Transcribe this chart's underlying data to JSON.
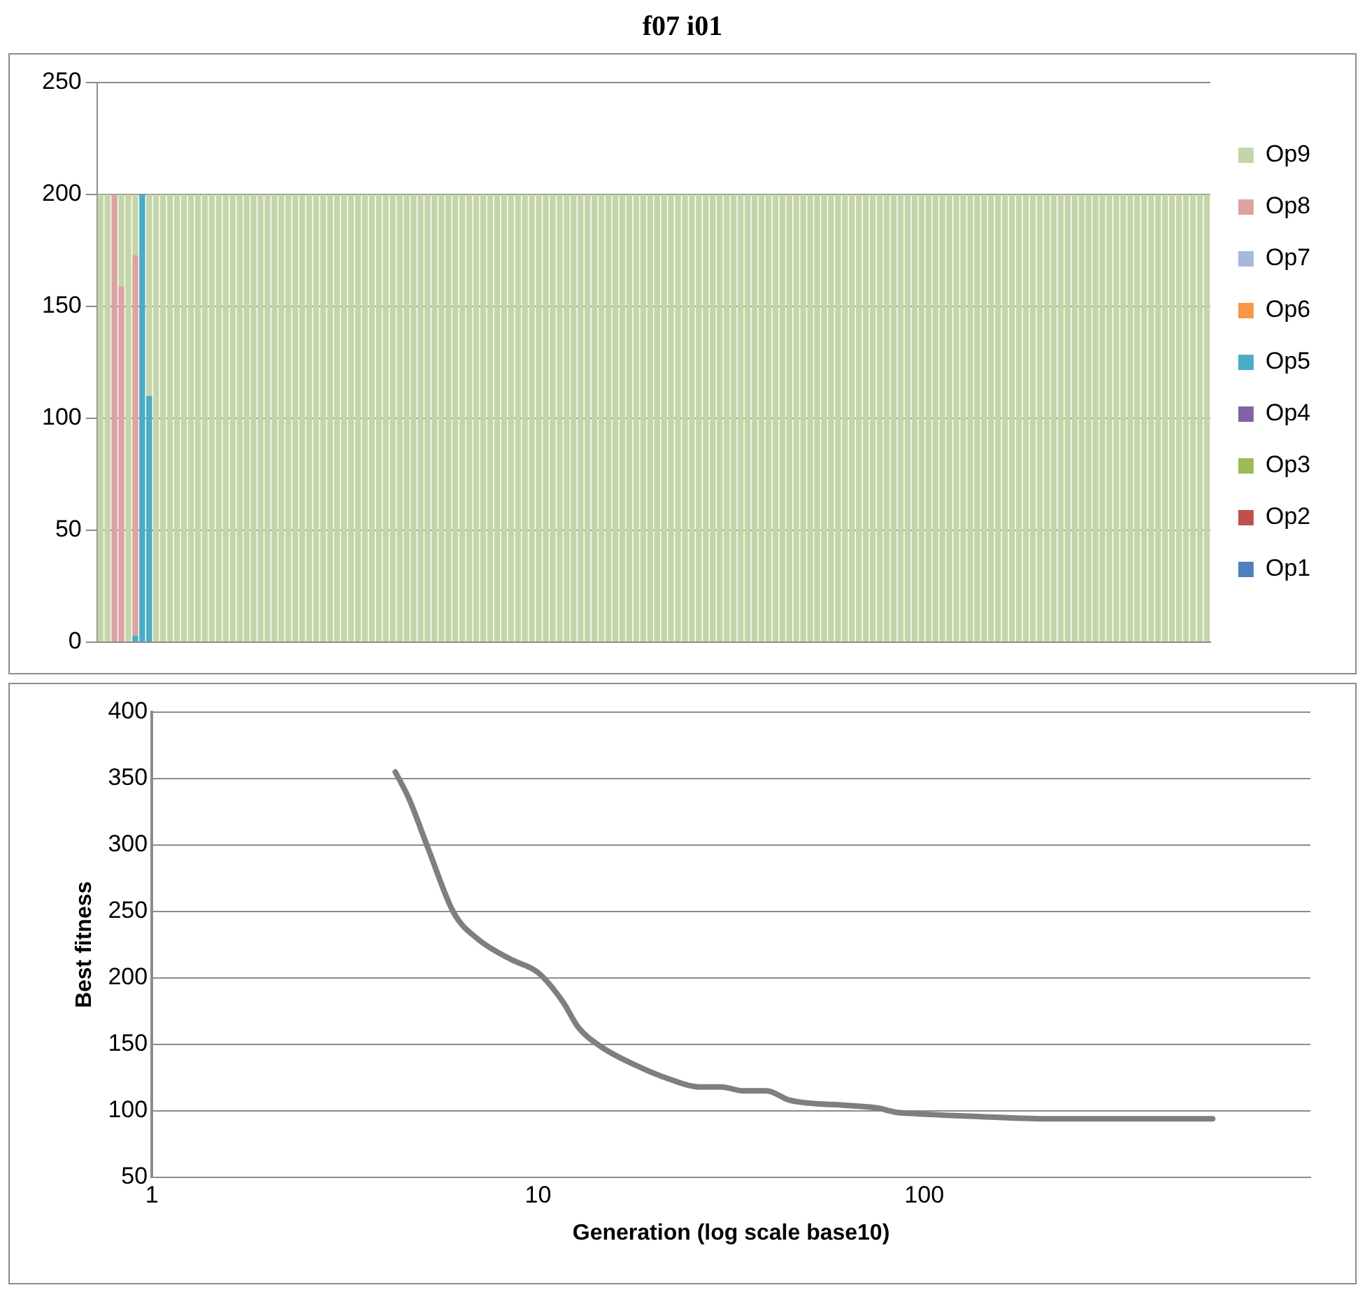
{
  "chart_data": [
    {
      "type": "bar",
      "title": "f07 i01",
      "stacked": true,
      "legend": "right",
      "grid": "y",
      "ylim": [
        0,
        250
      ],
      "yticks": [
        0,
        50,
        100,
        150,
        200,
        250
      ],
      "categories": [
        null,
        null,
        null,
        null,
        null,
        null,
        null,
        null,
        null,
        null,
        null,
        null,
        null,
        null,
        null,
        null,
        null,
        null,
        null,
        null,
        null,
        null,
        null,
        null,
        null,
        null,
        null,
        null,
        null,
        null,
        null,
        null,
        null,
        null,
        null,
        null,
        null,
        null,
        null,
        null,
        null,
        null,
        null,
        null,
        null,
        null,
        null,
        null,
        null,
        null,
        null,
        null,
        null,
        null,
        null,
        null,
        null,
        null,
        null,
        null,
        null,
        null,
        null,
        null,
        null,
        null,
        null,
        null,
        null,
        null,
        null,
        null,
        null,
        null,
        null,
        null,
        null,
        null,
        null,
        null,
        null,
        null,
        null,
        null,
        null,
        null,
        null,
        null,
        null,
        null,
        null,
        null,
        null,
        null,
        null,
        null,
        null,
        null,
        null,
        null,
        null,
        null,
        null,
        null,
        null,
        null,
        null,
        null,
        null,
        null,
        null,
        null,
        null,
        null,
        null,
        null,
        null,
        null,
        null,
        null,
        null,
        null,
        null,
        null,
        null,
        null,
        null,
        null,
        null,
        null,
        null,
        null,
        null,
        null,
        null,
        null,
        null,
        null,
        null,
        null,
        null,
        null,
        null,
        null,
        null,
        null,
        null,
        null,
        null,
        null,
        null,
        null,
        null,
        null,
        null,
        null,
        null,
        null,
        null,
        null
      ],
      "series": [
        {
          "name": "Op1",
          "color": "#4f81bd",
          "values": [
            0,
            0,
            0,
            0,
            0,
            0,
            0,
            0,
            0,
            0,
            0,
            0,
            0,
            0,
            0,
            0,
            0,
            0,
            0,
            0,
            0,
            0,
            0,
            0,
            0,
            0,
            0,
            0,
            0,
            0,
            0,
            0,
            0,
            0,
            0,
            0,
            0,
            0,
            0,
            0,
            0,
            0,
            0,
            0,
            0,
            0,
            0,
            0,
            0,
            0,
            0,
            0,
            0,
            0,
            0,
            0,
            0,
            0,
            0,
            0,
            0,
            0,
            0,
            0,
            0,
            0,
            0,
            0,
            0,
            0,
            0,
            0,
            0,
            0,
            0,
            0,
            0,
            0,
            0,
            0,
            0,
            0,
            0,
            0,
            0,
            0,
            0,
            0,
            0,
            0,
            0,
            0,
            0,
            0,
            0,
            0,
            0,
            0,
            0,
            0,
            0,
            0,
            0,
            0,
            0,
            0,
            0,
            0,
            0,
            0,
            0,
            0,
            0,
            0,
            0,
            0,
            0,
            0,
            0,
            0,
            0,
            0,
            0,
            0,
            0,
            0,
            0,
            0,
            0,
            0,
            0,
            0,
            0,
            0,
            0,
            0,
            0,
            0,
            0,
            0,
            0,
            0,
            0,
            0,
            0,
            0,
            0,
            0,
            0,
            0,
            0,
            0,
            0,
            0,
            0,
            0,
            0,
            0,
            0,
            0
          ]
        },
        {
          "name": "Op2",
          "color": "#c0504d",
          "values": [
            0,
            0,
            0,
            0,
            0,
            0,
            0,
            0,
            0,
            0,
            0,
            0,
            0,
            0,
            0,
            0,
            0,
            0,
            0,
            0,
            0,
            0,
            0,
            0,
            0,
            0,
            0,
            0,
            0,
            0,
            0,
            0,
            0,
            0,
            0,
            0,
            0,
            0,
            0,
            0,
            0,
            0,
            0,
            0,
            0,
            0,
            0,
            0,
            0,
            0,
            0,
            0,
            0,
            0,
            0,
            0,
            0,
            0,
            0,
            0,
            0,
            0,
            0,
            0,
            0,
            0,
            0,
            0,
            0,
            0,
            0,
            0,
            0,
            0,
            0,
            0,
            0,
            0,
            0,
            0,
            0,
            0,
            0,
            0,
            0,
            0,
            0,
            0,
            0,
            0,
            0,
            0,
            0,
            0,
            0,
            0,
            0,
            0,
            0,
            0,
            0,
            0,
            0,
            0,
            0,
            0,
            0,
            0,
            0,
            0,
            0,
            0,
            0,
            0,
            0,
            0,
            0,
            0,
            0,
            0,
            0,
            0,
            0,
            0,
            0,
            0,
            0,
            0,
            0,
            0,
            0,
            0,
            0,
            0,
            0,
            0,
            0,
            0,
            0,
            0,
            0,
            0,
            0,
            0,
            0,
            0,
            0,
            0,
            0,
            0,
            0,
            0,
            0,
            0,
            0,
            0,
            0,
            0,
            0,
            0
          ]
        },
        {
          "name": "Op3",
          "color": "#9bbb59",
          "values": [
            0,
            0,
            0,
            0,
            0,
            0,
            0,
            0,
            0,
            0,
            0,
            0,
            0,
            0,
            0,
            0,
            0,
            0,
            0,
            0,
            0,
            0,
            0,
            0,
            0,
            0,
            0,
            0,
            0,
            0,
            0,
            0,
            0,
            0,
            0,
            0,
            0,
            0,
            0,
            0,
            0,
            0,
            0,
            0,
            0,
            0,
            0,
            0,
            0,
            0,
            0,
            0,
            0,
            0,
            0,
            0,
            0,
            0,
            0,
            0,
            0,
            0,
            0,
            0,
            0,
            0,
            0,
            0,
            0,
            0,
            0,
            0,
            0,
            0,
            0,
            0,
            0,
            0,
            0,
            0,
            0,
            0,
            0,
            0,
            0,
            0,
            0,
            0,
            0,
            0,
            0,
            0,
            0,
            0,
            0,
            0,
            0,
            0,
            0,
            0,
            0,
            0,
            0,
            0,
            0,
            0,
            0,
            0,
            0,
            0,
            0,
            0,
            0,
            0,
            0,
            0,
            0,
            0,
            0,
            0,
            0,
            0,
            0,
            0,
            0,
            0,
            0,
            0,
            0,
            0,
            0,
            0,
            0,
            0,
            0,
            0,
            0,
            0,
            0,
            0,
            0,
            0,
            0,
            0,
            0,
            0,
            0,
            0,
            0,
            0,
            0,
            0,
            0,
            0,
            0,
            0,
            0,
            0,
            0,
            0
          ]
        },
        {
          "name": "Op4",
          "color": "#8064a2",
          "values": [
            0,
            0,
            0,
            0,
            0,
            0,
            0,
            0,
            0,
            0,
            0,
            0,
            0,
            0,
            0,
            0,
            0,
            0,
            0,
            0,
            0,
            0,
            0,
            0,
            0,
            0,
            0,
            0,
            0,
            0,
            0,
            0,
            0,
            0,
            0,
            0,
            0,
            0,
            0,
            0,
            0,
            0,
            0,
            0,
            0,
            0,
            0,
            0,
            0,
            0,
            0,
            0,
            0,
            0,
            0,
            0,
            0,
            0,
            0,
            0,
            0,
            0,
            0,
            0,
            0,
            0,
            0,
            0,
            0,
            0,
            0,
            0,
            0,
            0,
            0,
            0,
            0,
            0,
            0,
            0,
            0,
            0,
            0,
            0,
            0,
            0,
            0,
            0,
            0,
            0,
            0,
            0,
            0,
            0,
            0,
            0,
            0,
            0,
            0,
            0,
            0,
            0,
            0,
            0,
            0,
            0,
            0,
            0,
            0,
            0,
            0,
            0,
            0,
            0,
            0,
            0,
            0,
            0,
            0,
            0,
            0,
            0,
            0,
            0,
            0,
            0,
            0,
            0,
            0,
            0,
            0,
            0,
            0,
            0,
            0,
            0,
            0,
            0,
            0,
            0,
            0,
            0,
            0,
            0,
            0,
            0,
            0,
            0,
            0,
            0,
            0,
            0,
            0,
            0,
            0,
            0,
            0,
            0,
            0,
            0
          ]
        },
        {
          "name": "Op5",
          "color": "#4bacc6",
          "values": [
            0,
            0,
            0,
            0,
            0,
            3,
            200,
            110,
            0,
            0,
            0,
            0,
            0,
            0,
            0,
            0,
            0,
            0,
            0,
            0,
            0,
            0,
            0,
            0,
            0,
            0,
            0,
            0,
            0,
            0,
            0,
            0,
            0,
            0,
            0,
            0,
            0,
            0,
            0,
            0,
            0,
            0,
            0,
            0,
            0,
            0,
            0,
            0,
            0,
            0,
            0,
            0,
            0,
            0,
            0,
            0,
            0,
            0,
            0,
            0,
            0,
            0,
            0,
            0,
            0,
            0,
            0,
            0,
            0,
            0,
            0,
            0,
            0,
            0,
            0,
            0,
            0,
            0,
            0,
            0,
            0,
            0,
            0,
            0,
            0,
            0,
            0,
            0,
            0,
            0,
            0,
            0,
            0,
            0,
            0,
            0,
            0,
            0,
            0,
            0,
            0,
            0,
            0,
            0,
            0,
            0,
            0,
            0,
            0,
            0,
            0,
            0,
            0,
            0,
            0,
            0,
            0,
            0,
            0,
            0,
            0,
            0,
            0,
            0,
            0,
            0,
            0,
            0,
            0,
            0,
            0,
            0,
            0,
            0,
            0,
            0,
            0,
            0,
            0,
            0,
            0,
            0,
            0,
            0,
            0,
            0,
            0,
            0,
            0,
            0,
            0,
            0,
            0,
            0,
            0,
            0,
            0,
            0,
            0,
            0
          ]
        },
        {
          "name": "Op6",
          "color": "#f79646",
          "values": [
            0,
            0,
            0,
            0,
            0,
            0,
            0,
            0,
            0,
            0,
            0,
            0,
            0,
            0,
            0,
            0,
            0,
            0,
            0,
            0,
            0,
            0,
            0,
            0,
            0,
            0,
            0,
            0,
            0,
            0,
            0,
            0,
            0,
            0,
            0,
            0,
            0,
            0,
            0,
            0,
            0,
            0,
            0,
            0,
            0,
            0,
            0,
            0,
            0,
            0,
            0,
            0,
            0,
            0,
            0,
            0,
            0,
            0,
            0,
            0,
            0,
            0,
            0,
            0,
            0,
            0,
            0,
            0,
            0,
            0,
            0,
            0,
            0,
            0,
            0,
            0,
            0,
            0,
            0,
            0,
            0,
            0,
            0,
            0,
            0,
            0,
            0,
            0,
            0,
            0,
            0,
            0,
            0,
            0,
            0,
            0,
            0,
            0,
            0,
            0,
            0,
            0,
            0,
            0,
            0,
            0,
            0,
            0,
            0,
            0,
            0,
            0,
            0,
            0,
            0,
            0,
            0,
            0,
            0,
            0,
            0,
            0,
            0,
            0,
            0,
            0,
            0,
            0,
            0,
            0,
            0,
            0,
            0,
            0,
            0,
            0,
            0,
            0,
            0,
            0,
            0,
            0,
            0,
            0,
            0,
            0,
            0,
            0,
            0,
            0,
            0,
            0,
            0,
            0,
            0,
            0,
            0,
            0,
            0,
            0
          ]
        },
        {
          "name": "Op7",
          "color": "#a5b9dc",
          "values": [
            0,
            0,
            0,
            0,
            0,
            0,
            0,
            0,
            0,
            0,
            0,
            0,
            0,
            0,
            0,
            0,
            0,
            0,
            0,
            0,
            0,
            0,
            0,
            0,
            0,
            0,
            0,
            0,
            0,
            0,
            0,
            0,
            0,
            0,
            0,
            0,
            0,
            0,
            0,
            0,
            0,
            0,
            0,
            0,
            0,
            0,
            0,
            0,
            0,
            0,
            0,
            0,
            0,
            0,
            0,
            0,
            0,
            0,
            0,
            0,
            0,
            0,
            0,
            0,
            0,
            0,
            0,
            0,
            0,
            0,
            0,
            0,
            0,
            0,
            0,
            0,
            0,
            0,
            0,
            0,
            0,
            0,
            0,
            0,
            0,
            0,
            0,
            0,
            0,
            0,
            0,
            0,
            0,
            0,
            0,
            0,
            0,
            0,
            0,
            0,
            0,
            0,
            0,
            0,
            0,
            0,
            0,
            0,
            0,
            0,
            0,
            0,
            0,
            0,
            0,
            0,
            0,
            0,
            0,
            0,
            0,
            0,
            0,
            0,
            0,
            0,
            0,
            0,
            0,
            0,
            0,
            0,
            0,
            0,
            0,
            0,
            0,
            0,
            0,
            0,
            0,
            0,
            0,
            0,
            0,
            0,
            0,
            0,
            0,
            0,
            0,
            0,
            0,
            0,
            0,
            0,
            0,
            0,
            0,
            0
          ]
        },
        {
          "name": "Op8",
          "color": "#dba3a2",
          "values": [
            0,
            0,
            200,
            159,
            0,
            170,
            0,
            0,
            0,
            0,
            0,
            0,
            0,
            0,
            0,
            0,
            0,
            0,
            0,
            0,
            0,
            0,
            0,
            0,
            0,
            0,
            0,
            0,
            0,
            0,
            0,
            0,
            0,
            0,
            0,
            0,
            0,
            0,
            0,
            0,
            0,
            0,
            0,
            0,
            0,
            0,
            0,
            0,
            0,
            0,
            0,
            0,
            0,
            0,
            0,
            0,
            0,
            0,
            0,
            0,
            0,
            0,
            0,
            0,
            0,
            0,
            0,
            0,
            0,
            0,
            0,
            0,
            0,
            0,
            0,
            0,
            0,
            0,
            0,
            0,
            0,
            0,
            0,
            0,
            0,
            0,
            0,
            0,
            0,
            0,
            0,
            0,
            0,
            0,
            0,
            0,
            0,
            0,
            0,
            0,
            0,
            0,
            0,
            0,
            0,
            0,
            0,
            0,
            0,
            0,
            0,
            0,
            0,
            0,
            0,
            0,
            0,
            0,
            0,
            0,
            0,
            0,
            0,
            0,
            0,
            0,
            0,
            0,
            0,
            0,
            0,
            0,
            0,
            0,
            0,
            0,
            0,
            0,
            0,
            0,
            0,
            0,
            0,
            0,
            0,
            0,
            0,
            0,
            0,
            0,
            0,
            0,
            0,
            0,
            0,
            0,
            0,
            0,
            0,
            0
          ]
        },
        {
          "name": "Op9",
          "color": "#c4d6a9",
          "values": [
            200,
            200,
            0,
            41,
            200,
            27,
            0,
            90,
            200,
            200,
            200,
            200,
            200,
            200,
            200,
            200,
            200,
            200,
            200,
            200,
            200,
            200,
            200,
            200,
            200,
            200,
            200,
            200,
            200,
            200,
            200,
            200,
            200,
            200,
            200,
            200,
            200,
            200,
            200,
            200,
            200,
            200,
            200,
            200,
            200,
            200,
            200,
            200,
            200,
            200,
            200,
            200,
            200,
            200,
            200,
            200,
            200,
            200,
            200,
            200,
            200,
            200,
            200,
            200,
            200,
            200,
            200,
            200,
            200,
            200,
            200,
            200,
            200,
            200,
            200,
            200,
            200,
            200,
            200,
            200,
            200,
            200,
            200,
            200,
            200,
            200,
            200,
            200,
            200,
            200,
            200,
            200,
            200,
            200,
            200,
            200,
            200,
            200,
            200,
            200,
            200,
            200,
            200,
            200,
            200,
            200,
            200,
            200,
            200,
            200,
            200,
            200,
            200,
            200,
            200,
            200,
            200,
            200,
            200,
            200,
            200,
            200,
            200,
            200,
            200,
            200,
            200,
            200,
            200,
            200,
            200,
            200,
            200,
            200,
            200,
            200,
            200,
            200,
            200,
            200,
            200,
            200,
            200,
            200,
            200,
            200,
            200,
            200,
            200,
            200,
            200,
            200,
            200,
            200,
            200,
            200,
            200,
            200,
            200,
            200
          ]
        }
      ]
    },
    {
      "type": "line",
      "xlabel": "Generation (log scale base10)",
      "ylabel": "Best fitness",
      "log": "x",
      "grid": "y",
      "marker": "none",
      "line_style": "solid",
      "color": "#7f7f7f",
      "xlim": [
        1,
        1000
      ],
      "xticks": [
        1,
        10,
        100
      ],
      "ylim": [
        50,
        400
      ],
      "yticks": [
        50,
        100,
        150,
        200,
        250,
        300,
        350,
        400
      ],
      "x": [
        4.27,
        4.63,
        5.2,
        6.05,
        7.0,
        8.5,
        10.0,
        11.6,
        12.7,
        14.6,
        18.3,
        21.8,
        26,
        29.8,
        34,
        39,
        44.8,
        64,
        76,
        84,
        92,
        131,
        205,
        320,
        420,
        558
      ],
      "values": [
        355,
        335,
        297,
        249,
        229,
        214,
        204,
        182,
        163,
        148,
        133,
        124,
        118,
        118,
        115,
        115,
        108,
        104,
        102,
        99,
        98,
        96,
        94,
        94,
        94,
        94
      ]
    }
  ]
}
